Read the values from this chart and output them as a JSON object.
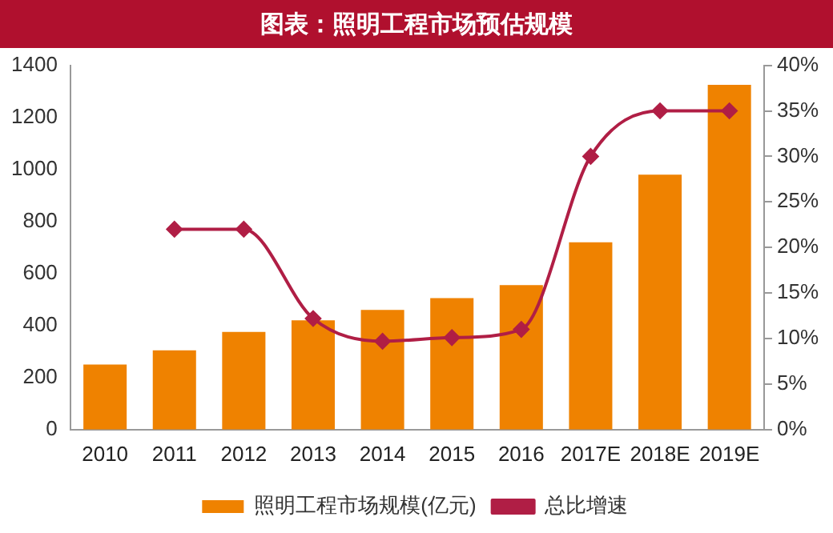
{
  "chart_data": {
    "type": "bar",
    "title": "图表：照明工程市场预估规模",
    "categories": [
      "2010",
      "2011",
      "2012",
      "2013",
      "2014",
      "2015",
      "2016",
      "2017E",
      "2018E",
      "2019E"
    ],
    "series": [
      {
        "name": "照明工程市场规模(亿元)",
        "color": "#ef8200",
        "values": [
          250,
          305,
          375,
          420,
          460,
          505,
          555,
          720,
          980,
          1325
        ]
      },
      {
        "name": "总比增速",
        "type": "line",
        "axis": "y2",
        "color": "#b01e45",
        "marker": "diamond",
        "values": [
          null,
          22,
          22,
          12.2,
          9.7,
          10.1,
          11,
          30,
          35,
          35
        ]
      }
    ],
    "ylim": [
      0,
      1400
    ],
    "yticks": [
      0,
      200,
      400,
      600,
      800,
      1000,
      1200,
      1400
    ],
    "y2lim": [
      0,
      40
    ],
    "y2ticks": [
      {
        "value": 0,
        "label": "0%"
      },
      {
        "value": 5,
        "label": "5%"
      },
      {
        "value": 10,
        "label": "10%"
      },
      {
        "value": 15,
        "label": "15%"
      },
      {
        "value": 20,
        "label": "20%"
      },
      {
        "value": 25,
        "label": "25%"
      },
      {
        "value": 30,
        "label": "30%"
      },
      {
        "value": 35,
        "label": "35%"
      },
      {
        "value": 40,
        "label": "40%"
      }
    ],
    "grid": false,
    "legend": "bottom"
  }
}
